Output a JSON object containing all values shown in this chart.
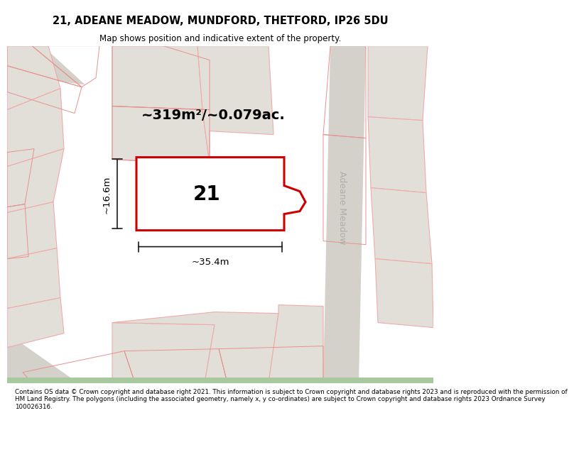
{
  "title_line1": "21, ADEANE MEADOW, MUNDFORD, THETFORD, IP26 5DU",
  "title_line2": "Map shows position and indicative extent of the property.",
  "area_label": "~319m²/~0.079ac.",
  "number_label": "21",
  "width_label": "~35.4m",
  "height_label": "~16.6m",
  "street_label": "Adeane Meadow",
  "footer_text": "Contains OS data © Crown copyright and database right 2021. This information is subject to Crown copyright and database rights 2023 and is reproduced with the permission of\nHM Land Registry. The polygons (including the associated geometry, namely x, y co-ordinates) are subject to Crown copyright and database rights 2023 Ordnance Survey\n100026316.",
  "bg_color": "#f5f5f0",
  "map_bg": "#ede9e4",
  "plot_fill": "#ffffff",
  "plot_edge": "#cc0000",
  "neighbor_fill": "#e2dfd9",
  "neighbor_edge": "#f0aaaa",
  "road_fill": "#d8d4ce",
  "title_bg": "#ffffff",
  "footer_bg": "#ffffff",
  "dim_color": "#1a1a1a",
  "street_color": "#b0aeaa",
  "green_strip": "#a8c8a0"
}
